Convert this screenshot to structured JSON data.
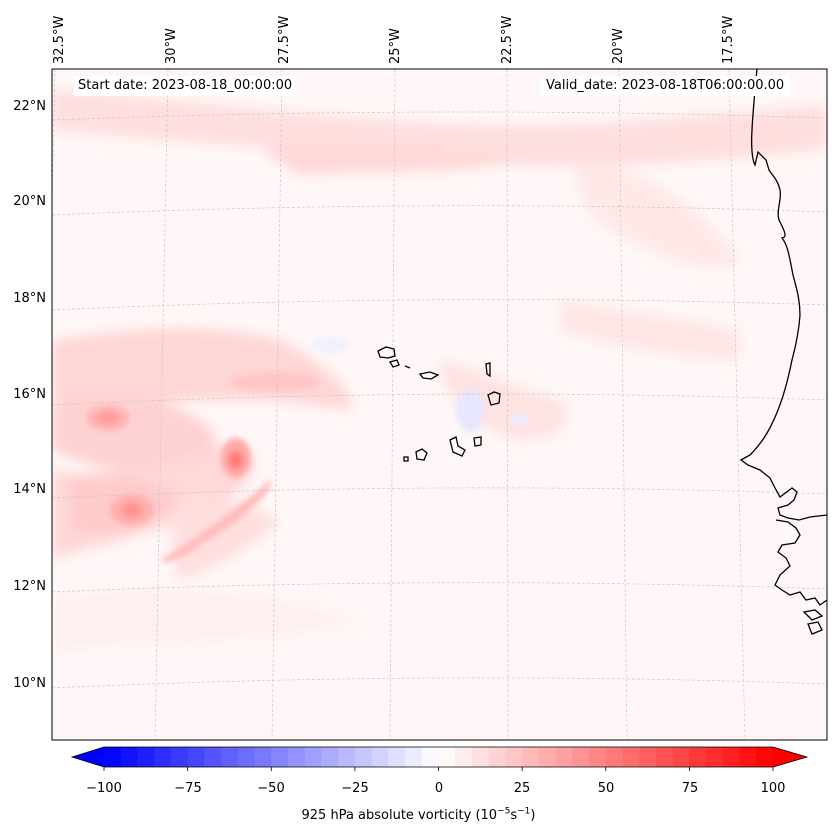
{
  "header": {
    "start_date": "Start date: 2023-08-18_00:00:00",
    "valid_date": "Valid_date: 2023-08-18T06:00:00.00"
  },
  "map": {
    "longitude_labels": [
      "32.5°W",
      "30°W",
      "27.5°W",
      "25°W",
      "22.5°W",
      "20°W",
      "17.5°W"
    ],
    "latitude_labels": [
      "22°N",
      "20°N",
      "18°N",
      "16°N",
      "14°N",
      "12°N",
      "10°N"
    ],
    "gridlines": true,
    "features": [
      "cape-verde-islands",
      "west-africa-coastline"
    ]
  },
  "colorbar": {
    "title_prefix": "925 hPa absolute vorticity (10",
    "title_exp1": "−5",
    "title_mid": "s",
    "title_exp2": "−1",
    "title_suffix": ")",
    "ticks": [
      "−100",
      "−75",
      "−50",
      "−25",
      "0",
      "25",
      "50",
      "75",
      "100"
    ],
    "range": [
      -100,
      100
    ],
    "colormap": "bwr",
    "colors": {
      "negative_end": "#0000ff",
      "positive_end": "#ff0000",
      "center": "#ffffff"
    }
  }
}
